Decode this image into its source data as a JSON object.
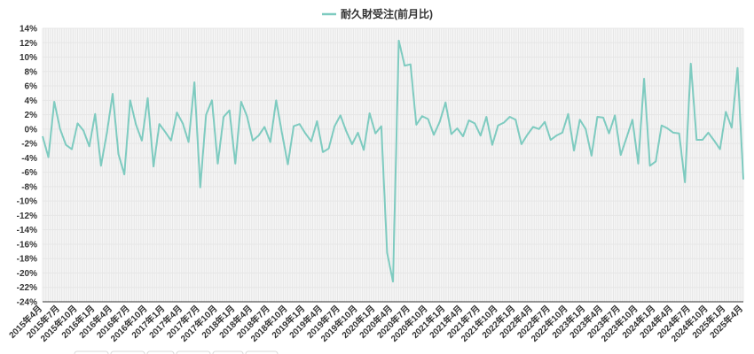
{
  "chart_data": {
    "type": "line",
    "legend": {
      "position": "top-center",
      "label": "耐久財受注(前月比)"
    },
    "colors": {
      "series": "#7ecbc0",
      "grid": "#e6e6e6",
      "axis": "#333333"
    },
    "grid": true,
    "ylim": [
      -24,
      14
    ],
    "yticks": [
      "14%",
      "12%",
      "10%",
      "8%",
      "6%",
      "4%",
      "2%",
      "0%",
      "-2%",
      "-4%",
      "-6%",
      "-8%",
      "-10%",
      "-12%",
      "-14%",
      "-16%",
      "-18%",
      "-20%",
      "-22%",
      "-24%"
    ],
    "xticks": [
      "2015年4月",
      "2015年7月",
      "2015年10月",
      "2016年1月",
      "2016年4月",
      "2016年7月",
      "2016年10月",
      "2017年1月",
      "2017年4月",
      "2017年7月",
      "2017年10月",
      "2018年1月",
      "2018年4月",
      "2018年7月",
      "2018年10月",
      "2019年1月",
      "2019年4月",
      "2019年7月",
      "2019年10月",
      "2020年1月",
      "2020年4月",
      "2020年7月",
      "2020年10月",
      "2021年1月",
      "2021年4月",
      "2021年7月",
      "2021年10月",
      "2022年1月",
      "2022年4月",
      "2022年7月",
      "2022年10月",
      "2023年1月",
      "2023年4月",
      "2023年7月",
      "2023年10月",
      "2024年1月",
      "2024年4月",
      "2024年7月",
      "2024年10月",
      "2025年1月",
      "2025年4月"
    ],
    "series": [
      {
        "name": "耐久財受注(前月比)",
        "values": [
          -1.0,
          -3.9,
          3.8,
          0.0,
          -2.2,
          -2.8,
          0.8,
          -0.2,
          -2.4,
          2.1,
          -5.1,
          -0.6,
          4.9,
          -3.5,
          -6.3,
          4.0,
          0.6,
          -1.6,
          4.3,
          -5.2,
          0.7,
          -0.4,
          -1.6,
          2.3,
          0.8,
          -1.8,
          6.5,
          -8.1,
          2.0,
          4.0,
          -4.8,
          1.7,
          2.6,
          -4.8,
          3.8,
          1.8,
          -1.6,
          -0.9,
          0.3,
          -1.8,
          4.0,
          -0.6,
          -4.9,
          0.4,
          0.7,
          -0.6,
          -1.7,
          1.1,
          -3.2,
          -2.7,
          0.4,
          1.9,
          -0.3,
          -2.1,
          -0.5,
          -2.9,
          2.2,
          -0.6,
          0.4,
          -17.2,
          -21.2,
          12.3,
          8.8,
          9.0,
          0.6,
          1.8,
          1.4,
          -0.8,
          1.0,
          3.7,
          -0.7,
          0.1,
          -1.0,
          1.2,
          0.8,
          -0.9,
          1.7,
          -2.2,
          0.5,
          0.9,
          1.7,
          1.3,
          -2.1,
          -0.8,
          0.3,
          0.0,
          1.0,
          -1.5,
          -0.9,
          -0.5,
          2.1,
          -3.0,
          1.3,
          0.0,
          -3.7,
          1.7,
          1.6,
          -0.6,
          1.9,
          -3.6,
          -1.2,
          1.3,
          -4.8,
          7.0,
          -5.1,
          -4.5,
          0.5,
          0.1,
          -0.5,
          -0.6,
          -7.4,
          9.1,
          -1.5,
          -1.5,
          -0.5,
          -1.6,
          -2.8,
          2.4,
          0.2,
          8.5,
          -7.0
        ]
      }
    ]
  }
}
